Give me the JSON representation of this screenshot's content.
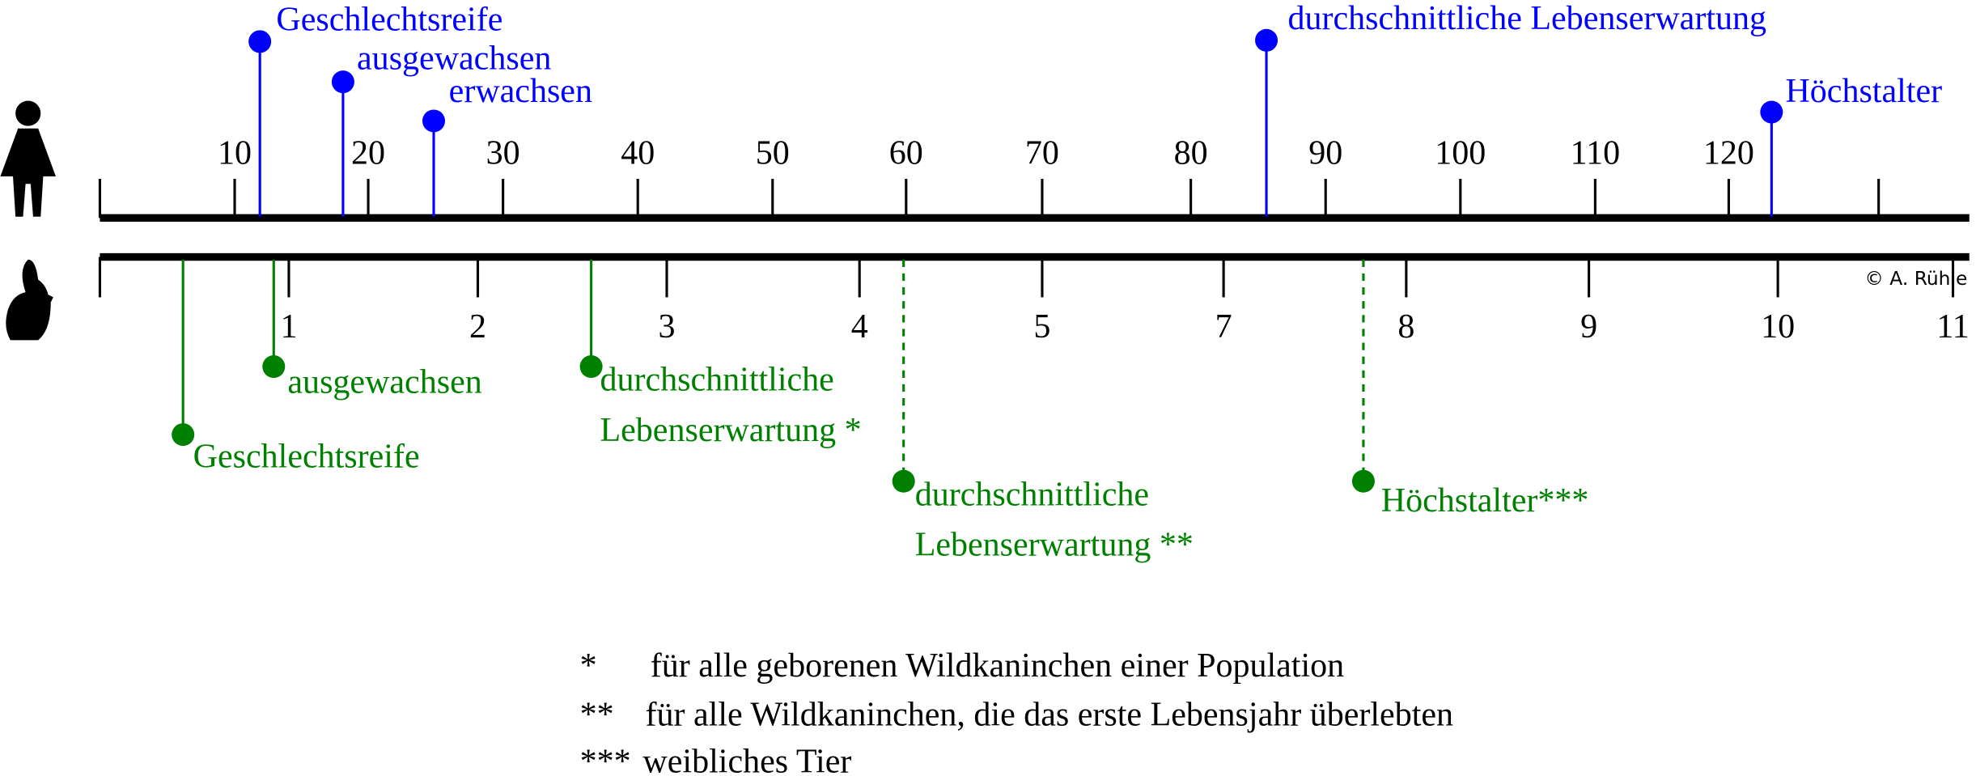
{
  "human_axis": {
    "ticks": [
      10,
      20,
      30,
      40,
      50,
      60,
      70,
      80,
      90,
      100,
      110,
      120
    ]
  },
  "human_events": [
    {
      "label": "Geschlechtsreife"
    },
    {
      "label": "ausgewachsen"
    },
    {
      "label": "erwachsen"
    },
    {
      "label": "durchschnittliche Lebenserwartung"
    },
    {
      "label": "Höchstalter"
    }
  ],
  "rabbit_axis": {
    "ticks": [
      1,
      2,
      3,
      4,
      5,
      7,
      8,
      9,
      10,
      11
    ]
  },
  "rabbit_events": [
    {
      "lines": [
        "Geschlechtsreife"
      ]
    },
    {
      "lines": [
        "ausgewachsen"
      ]
    },
    {
      "lines": [
        "durchschnittliche",
        "Lebenserwartung *"
      ]
    },
    {
      "lines": [
        "durchschnittliche",
        "Lebenserwartung **"
      ]
    },
    {
      "lines": [
        "Höchstalter***"
      ]
    }
  ],
  "credit": "© A. Rühle",
  "footnotes": [
    {
      "marker": "*",
      "text": "für alle geborenen Wildkaninchen einer Population"
    },
    {
      "marker": "**",
      "text": "für alle Wildkaninchen, die das erste Lebensjahr überlebten"
    },
    {
      "marker": "***",
      "text": "weibliches Tier"
    }
  ]
}
